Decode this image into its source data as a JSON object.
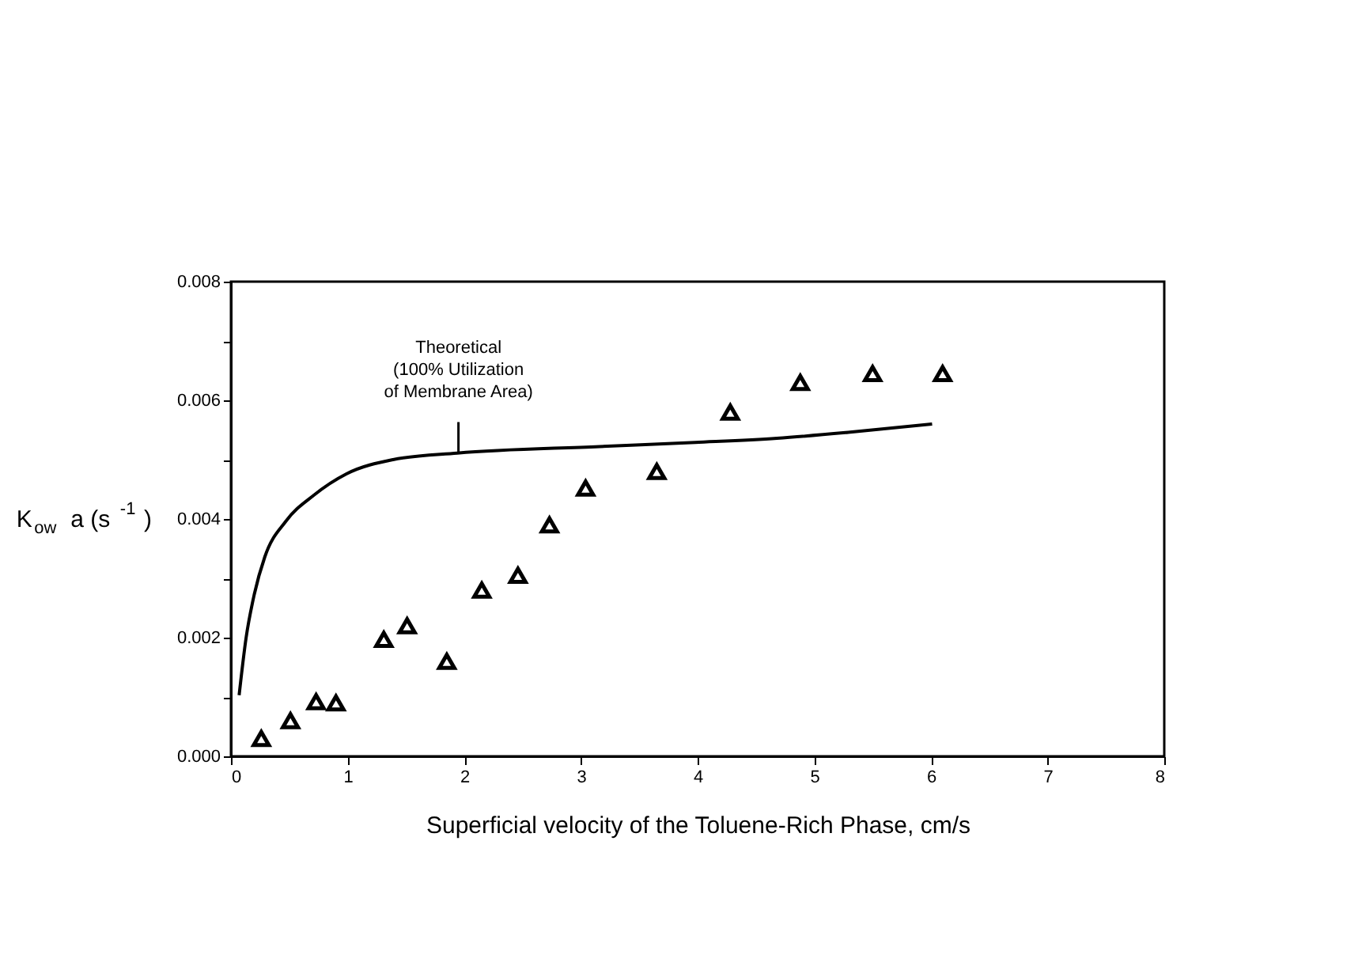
{
  "chart_data": {
    "type": "scatter",
    "xlabel": "Superficial velocity of the Toluene-Rich Phase, cm/s",
    "ylabel": "K$_{ow}$ a (s$^{-1}$ )",
    "series": [
      {
        "marker": "triangle",
        "color": "#000000",
        "x": [
          0.26,
          0.51,
          0.73,
          0.9,
          1.31,
          1.51,
          1.85,
          2.15,
          2.46,
          2.73,
          3.04,
          3.65,
          4.28,
          4.88,
          5.5,
          6.1
        ],
        "values": [
          0.0003,
          0.0006,
          0.00092,
          0.0009,
          0.00197,
          0.0022,
          0.0016,
          0.0028,
          0.00305,
          0.0039,
          0.00452,
          0.0048,
          0.0058,
          0.0063,
          0.00645,
          0.00645
        ]
      },
      {
        "type": "line",
        "marker": "none",
        "line_style": "solid",
        "color": "#000000",
        "x": [
          0.07,
          0.13,
          0.2,
          0.29,
          0.47,
          0.71,
          0.99,
          1.39,
          1.94,
          3.16,
          3.98,
          4.68,
          5.29,
          6.01
        ],
        "values": [
          0.00103,
          0.002,
          0.00273,
          0.00336,
          0.00396,
          0.0044,
          0.00476,
          0.005,
          0.00511,
          0.00522,
          0.00529,
          0.00536,
          0.00546,
          0.0056
        ]
      }
    ],
    "annotations": [
      {
        "text": "Theoretical\n(100% Utilization\nof Membrane Area)",
        "x": 1.95,
        "y": 0.0051
      }
    ],
    "xlim": [
      0,
      8
    ],
    "xticks": [
      0,
      1,
      2,
      3,
      4,
      5,
      6,
      7,
      8
    ],
    "ylim": [
      0,
      0.008
    ],
    "yticks": [
      {
        "value": 0,
        "label": "0.000"
      },
      {
        "value": 0.001,
        "label": null
      },
      {
        "value": 0.002,
        "label": "0.002"
      },
      {
        "value": 0.003,
        "label": null
      },
      {
        "value": 0.004,
        "label": "0.004"
      },
      {
        "value": 0.005,
        "label": null
      },
      {
        "value": 0.006,
        "label": "0.006"
      },
      {
        "value": 0.007,
        "label": null
      },
      {
        "value": 0.008,
        "label": "0.008"
      }
    ],
    "grid": false
  }
}
